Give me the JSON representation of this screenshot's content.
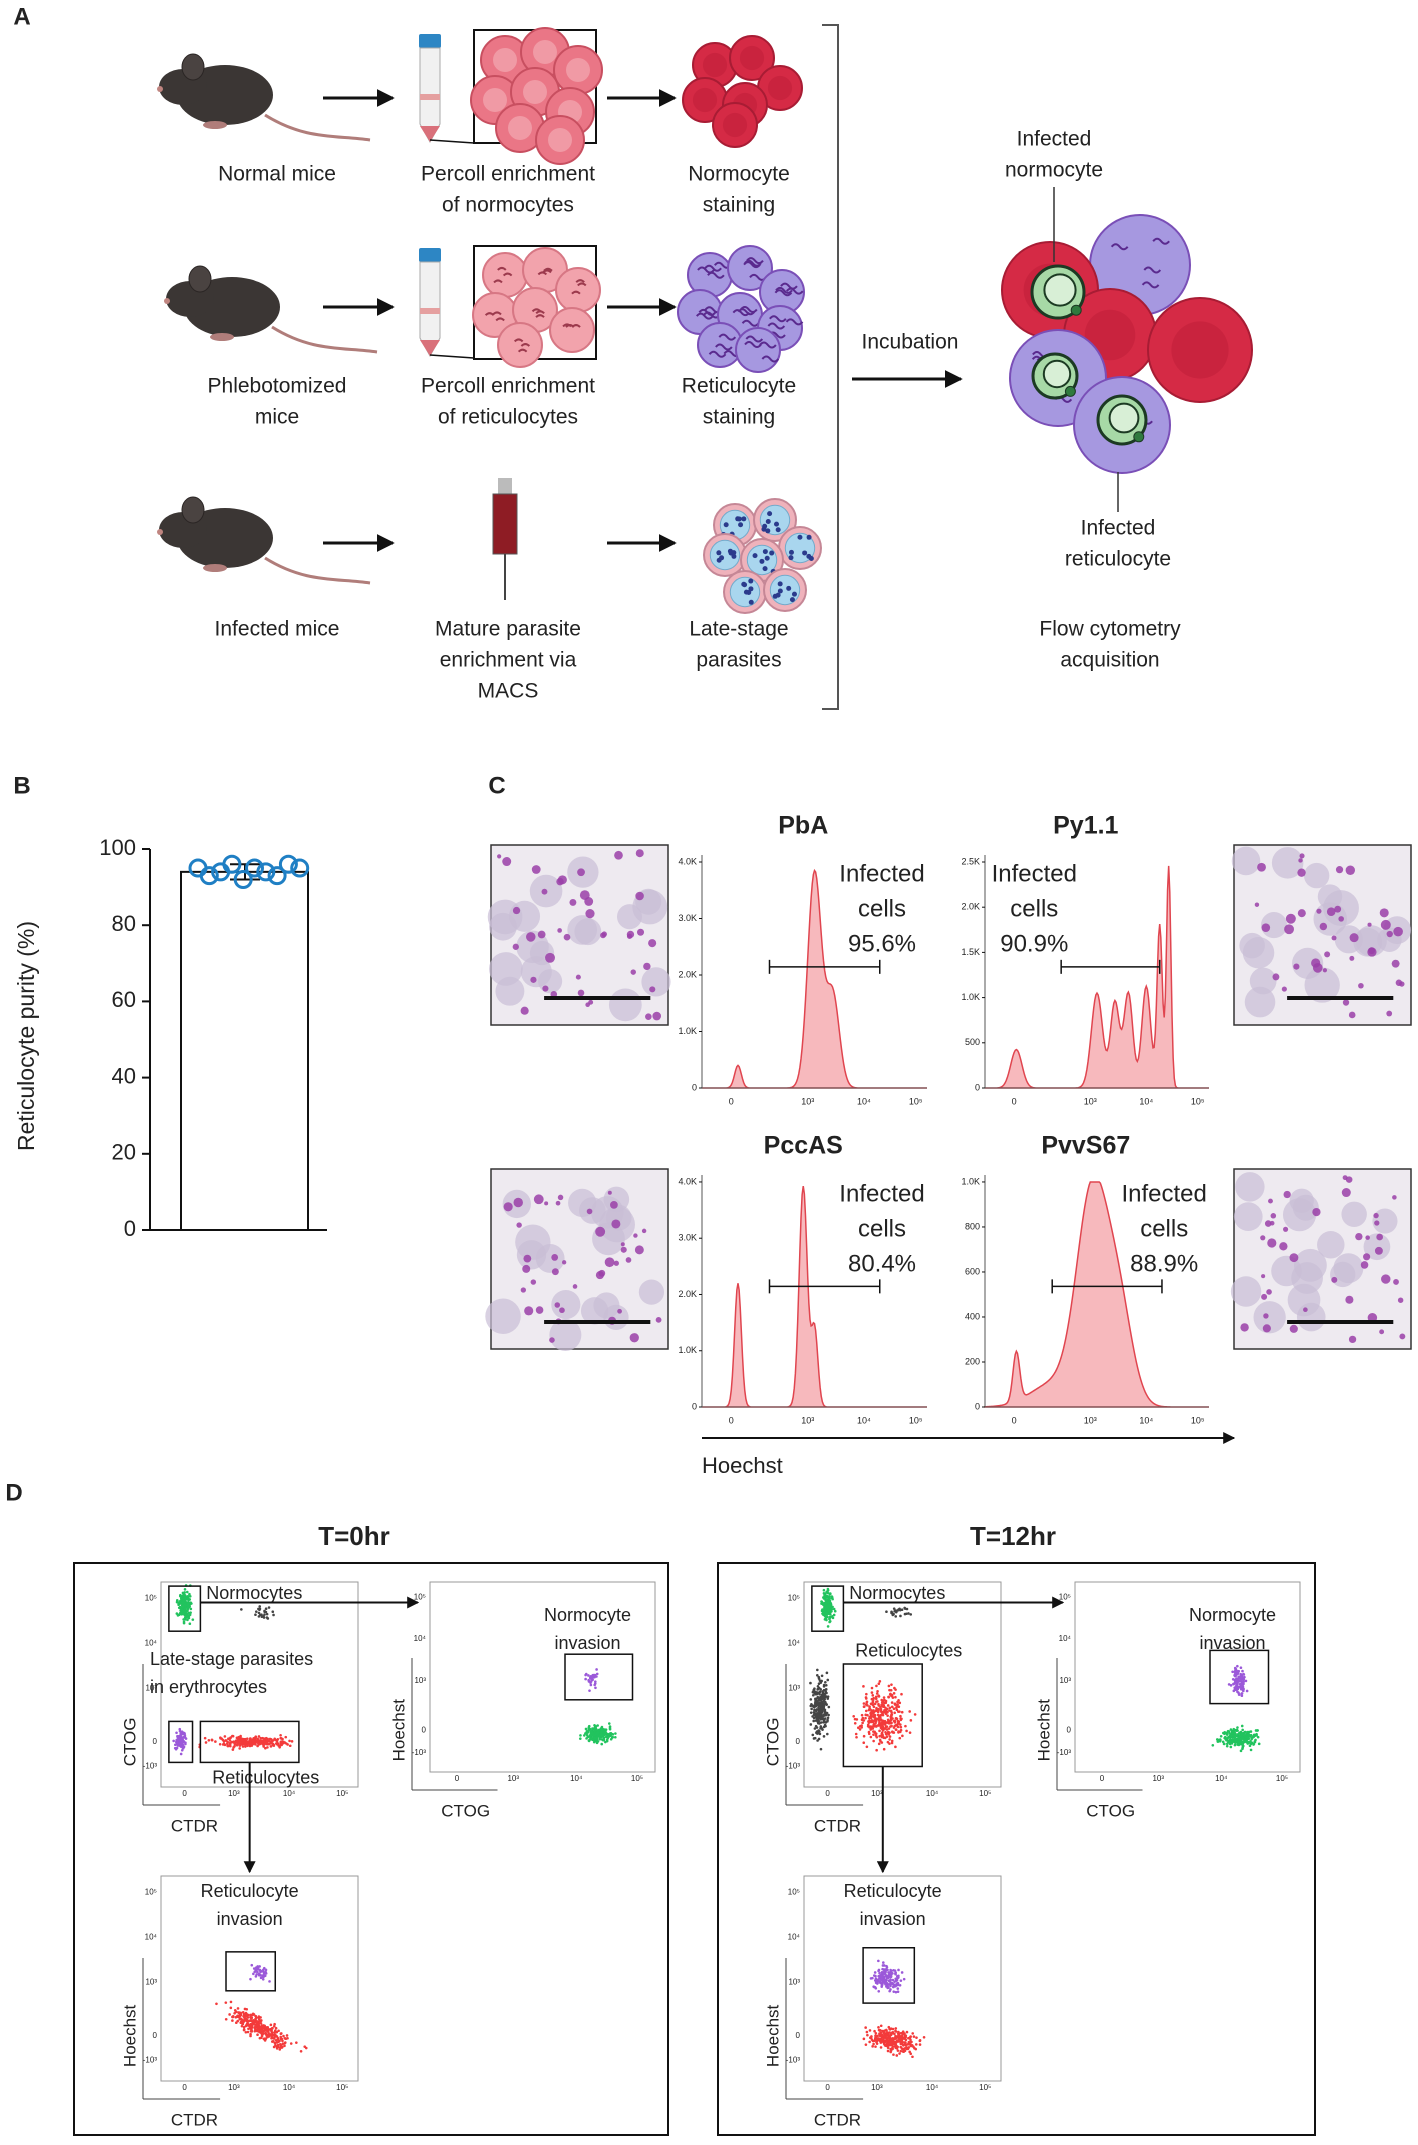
{
  "panel_a": {
    "label": "A",
    "rows": [
      {
        "source": [
          "Normal mice"
        ],
        "enrichment": [
          "Percoll enrichment",
          "of normocytes"
        ],
        "staining": [
          "Normocyte",
          "staining"
        ]
      },
      {
        "source": [
          "Phlebotomized",
          "mice"
        ],
        "enrichment": [
          "Percoll enrichment",
          "of reticulocytes"
        ],
        "staining": [
          "Reticulocyte",
          "staining"
        ]
      },
      {
        "source": [
          "Infected mice"
        ],
        "enrichment": [
          "Mature parasite",
          "enrichment via",
          "MACS"
        ],
        "staining": [
          "Late-stage",
          "parasites"
        ]
      }
    ],
    "incubation": "Incubation",
    "infected_normocyte": [
      "Infected",
      "normocyte"
    ],
    "infected_reticulocyte": [
      "Infected",
      "reticulocyte"
    ],
    "acquisition": [
      "Flow cytometry",
      "acquisition"
    ]
  },
  "chart_data": {
    "type": "bar",
    "panel_label": "B",
    "ylabel": "Reticulocyte purity (%)",
    "values": [
      94
    ],
    "errors": [
      2
    ],
    "points": [
      95,
      93,
      94,
      96,
      92,
      95,
      94,
      93,
      96,
      95
    ],
    "color": "#ffffff",
    "point_color": "#1f7fc4",
    "ylim": [
      0,
      100
    ],
    "yticks": [
      0,
      20,
      40,
      60,
      80,
      100
    ]
  },
  "panel_c": {
    "label": "C",
    "xlabel": "Hoechst",
    "gate_label": [
      "Infected",
      "cells"
    ],
    "xticks": [
      "0",
      "10³",
      "10⁴",
      "10⁵"
    ],
    "histograms": [
      {
        "title": "PbA",
        "percent": "95.6%",
        "yticks": [
          "4.0K",
          "3.0K",
          "2.0K",
          "1.0K",
          "0"
        ]
      },
      {
        "title": "Py1.1",
        "percent": "90.9%",
        "yticks": [
          "2.5K",
          "2.0K",
          "1.5K",
          "1.0K",
          "500",
          "0"
        ]
      },
      {
        "title": "PccAS",
        "percent": "80.4%",
        "yticks": [
          "4.0K",
          "3.0K",
          "2.0K",
          "1.0K",
          "0"
        ]
      },
      {
        "title": "PvvS67",
        "percent": "88.9%",
        "yticks": [
          "1.0K",
          "800",
          "600",
          "400",
          "200",
          "0"
        ]
      }
    ]
  },
  "panel_d": {
    "label": "D",
    "yticks": [
      "10⁵",
      "10⁴",
      "10³",
      "0",
      "-10³"
    ],
    "xticks": [
      "0",
      "10³",
      "10⁴",
      "10⁵"
    ],
    "timepoints": [
      {
        "title": "T=0hr"
      },
      {
        "title": "T=12hr"
      }
    ],
    "normocytes": "Normocytes",
    "late_stage": [
      "Late-stage parasites",
      "in erythrocytes"
    ],
    "reticulocytes": "Reticulocytes",
    "normocyte_invasion": [
      "Normocyte",
      "invasion"
    ],
    "reticulocyte_invasion": [
      "Reticulocyte",
      "invasion"
    ],
    "axes": {
      "ctog": "CTOG",
      "ctdr": "CTDR",
      "hoechst": "Hoechst"
    }
  }
}
